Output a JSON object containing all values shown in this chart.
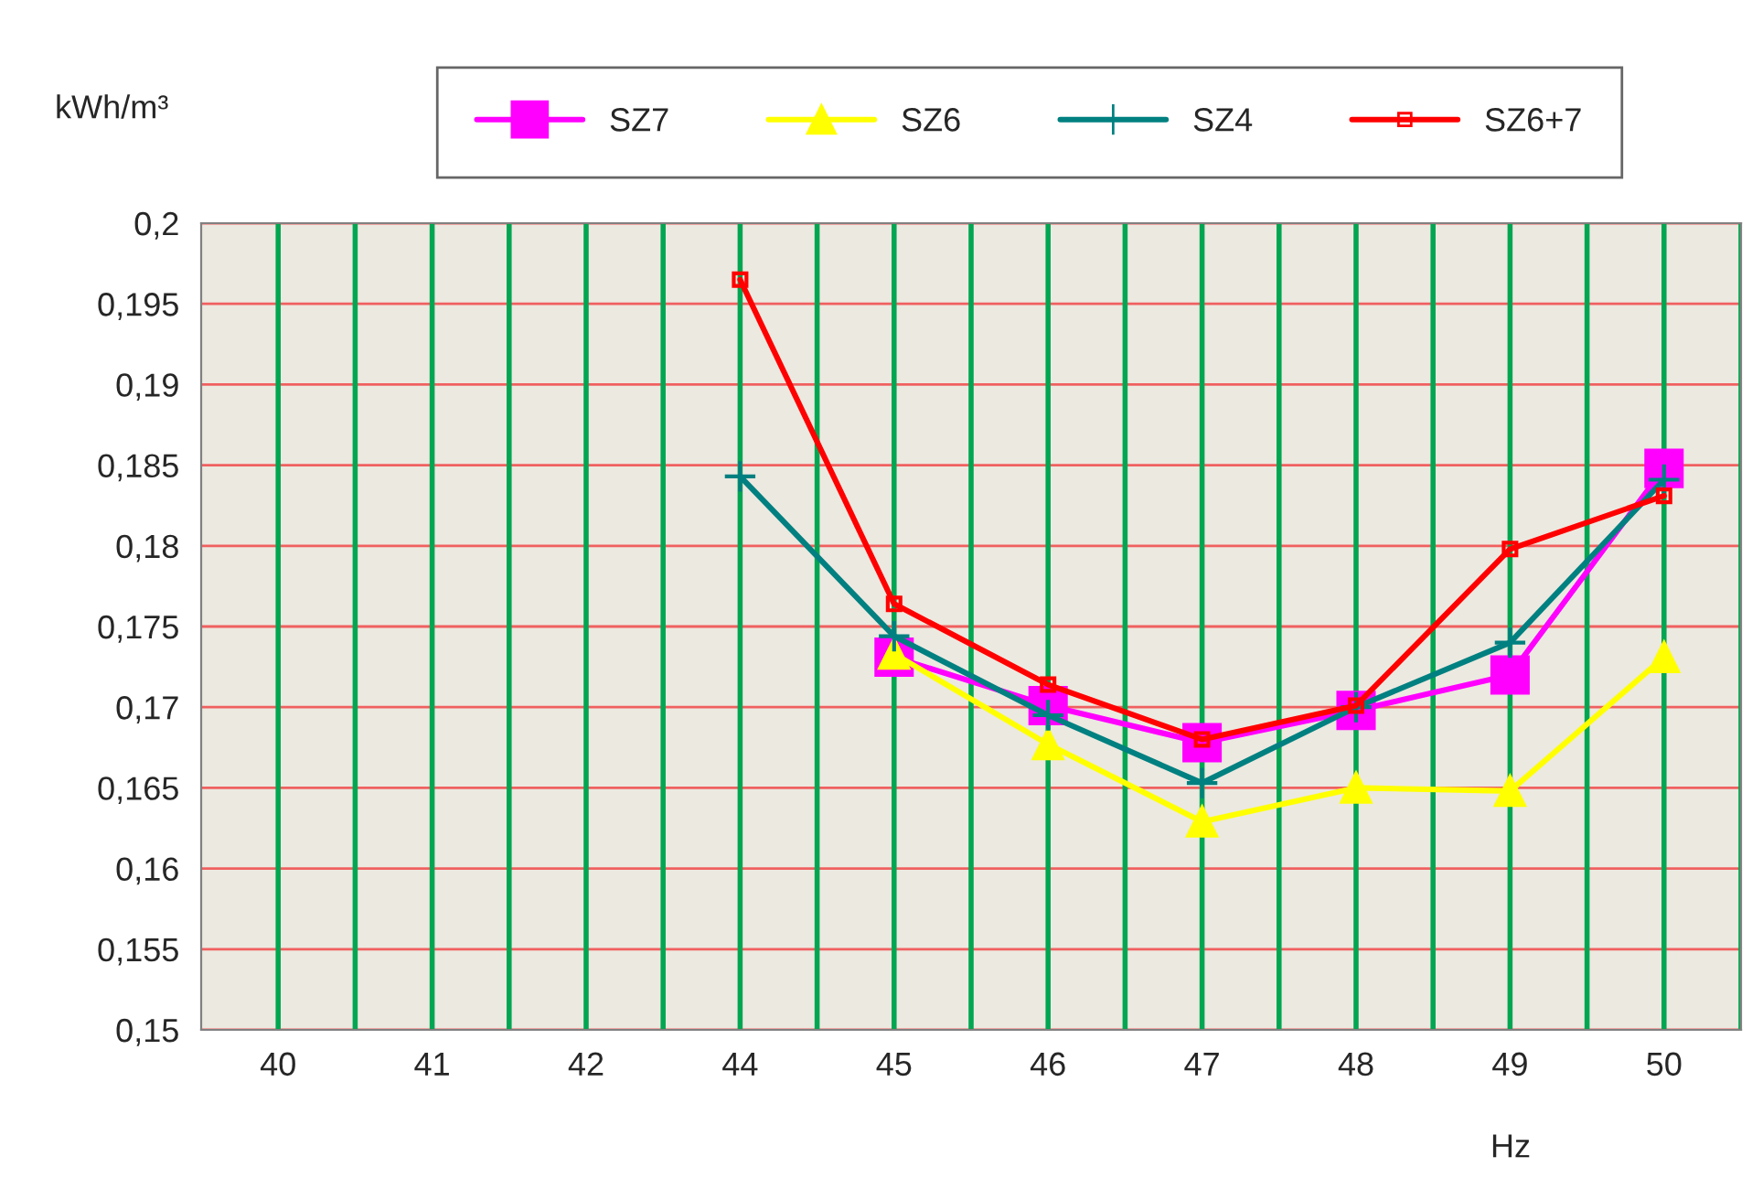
{
  "chart_data": {
    "type": "line",
    "xlabel": "Hz",
    "ylabel": "kWh/m³",
    "categories": [
      "40",
      "41",
      "42",
      "44",
      "45",
      "46",
      "47",
      "48",
      "49",
      "50"
    ],
    "series": [
      {
        "name": "SZ7",
        "color": "#ff00ff",
        "marker": "square",
        "values": [
          null,
          null,
          null,
          null,
          0.1731,
          0.1701,
          0.1678,
          0.1698,
          0.172,
          0.1848
        ]
      },
      {
        "name": "SZ6",
        "color": "#ffff00",
        "marker": "triangle",
        "values": [
          null,
          null,
          null,
          null,
          0.1733,
          0.1677,
          0.1629,
          0.165,
          0.1648,
          0.1731
        ]
      },
      {
        "name": "SZ4",
        "color": "#008080",
        "marker": "cross",
        "values": [
          null,
          null,
          null,
          0.1843,
          0.1744,
          0.1695,
          0.1653,
          0.17,
          0.174,
          0.1841
        ]
      },
      {
        "name": "SZ6+7",
        "color": "#ff0000",
        "marker": "square",
        "values": [
          null,
          null,
          null,
          0.1965,
          0.1764,
          0.1714,
          0.168,
          0.1701,
          0.1798,
          0.1831
        ]
      }
    ],
    "ylim": [
      0.15,
      0.2
    ],
    "yticks": [
      {
        "value": 0.15,
        "label": "0,15"
      },
      {
        "value": 0.155,
        "label": "0,155"
      },
      {
        "value": 0.16,
        "label": "0,16"
      },
      {
        "value": 0.165,
        "label": "0,165"
      },
      {
        "value": 0.17,
        "label": "0,17"
      },
      {
        "value": 0.175,
        "label": "0,175"
      },
      {
        "value": 0.18,
        "label": "0,18"
      },
      {
        "value": 0.185,
        "label": "0,185"
      },
      {
        "value": 0.19,
        "label": "0,19"
      },
      {
        "value": 0.195,
        "label": "0,195"
      },
      {
        "value": 0.2,
        "label": "0,2"
      }
    ],
    "grid": true,
    "legend": "top",
    "line_style": "solid"
  }
}
